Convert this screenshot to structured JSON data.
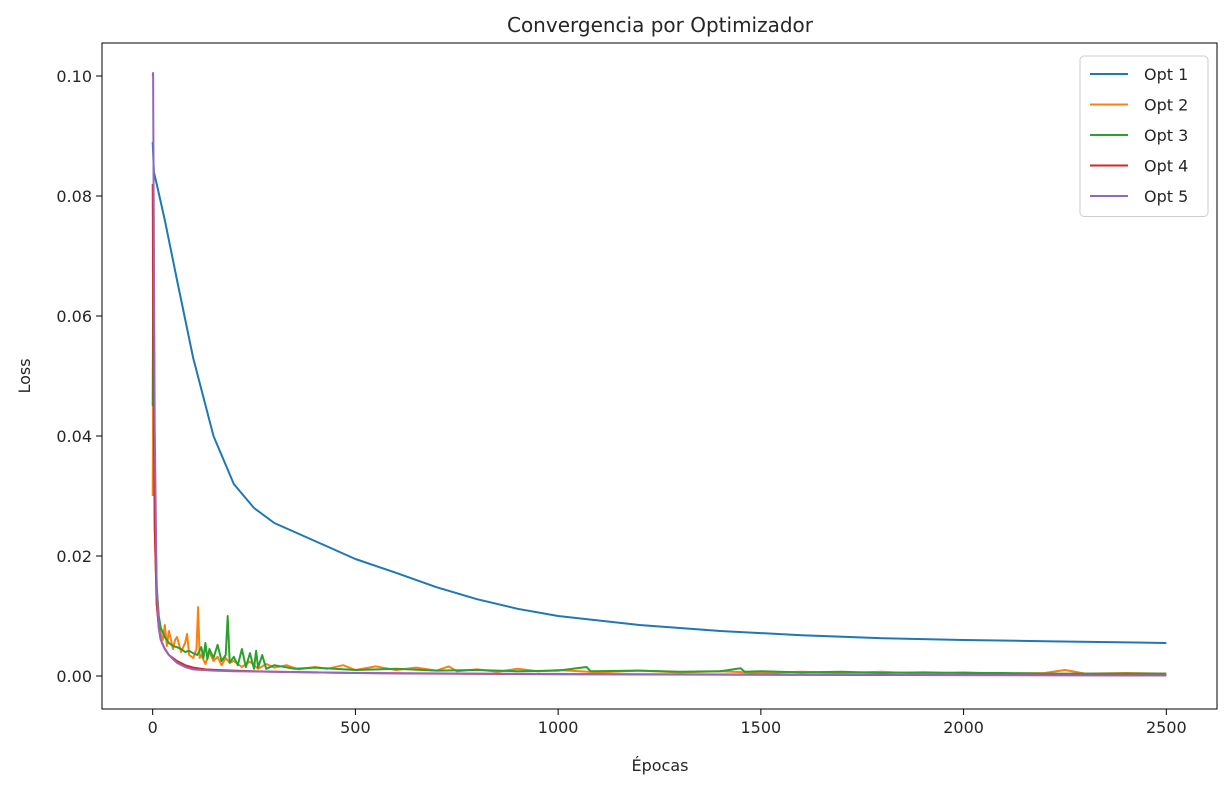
{
  "chart_data": {
    "type": "line",
    "title": "Convergencia por Optimizador",
    "xlabel": "Épocas",
    "ylabel": "Loss",
    "xlim": [
      -125,
      2625
    ],
    "ylim": [
      -0.0055,
      0.1055
    ],
    "xticks": [
      0,
      500,
      1000,
      1500,
      2000,
      2500
    ],
    "xtick_labels": [
      "0",
      "500",
      "1000",
      "1500",
      "2000",
      "2500"
    ],
    "yticks": [
      0.0,
      0.02,
      0.04,
      0.06,
      0.08,
      0.1
    ],
    "ytick_labels": [
      "0.00",
      "0.02",
      "0.04",
      "0.06",
      "0.08",
      "0.10"
    ],
    "grid": false,
    "legend_position": "top-right",
    "series": [
      {
        "name": "Opt 1",
        "color": "#1f77b4",
        "x": [
          0,
          3,
          10,
          30,
          60,
          100,
          150,
          200,
          250,
          300,
          400,
          500,
          600,
          700,
          800,
          900,
          1000,
          1200,
          1400,
          1600,
          1800,
          2000,
          2200,
          2400,
          2500
        ],
        "y": [
          0.089,
          0.084,
          0.082,
          0.076,
          0.066,
          0.053,
          0.04,
          0.032,
          0.028,
          0.0255,
          0.0225,
          0.0195,
          0.0172,
          0.0148,
          0.0128,
          0.0112,
          0.01,
          0.0085,
          0.0075,
          0.0068,
          0.0063,
          0.006,
          0.0058,
          0.0056,
          0.0055
        ]
      },
      {
        "name": "Opt 2",
        "color": "#ff7f0e",
        "x": [
          0,
          2,
          5,
          10,
          15,
          20,
          25,
          30,
          35,
          40,
          50,
          55,
          60,
          70,
          80,
          85,
          90,
          100,
          108,
          112,
          116,
          120,
          130,
          140,
          150,
          160,
          170,
          180,
          190,
          200,
          220,
          240,
          260,
          280,
          300,
          330,
          360,
          400,
          430,
          470,
          500,
          550,
          600,
          650,
          700,
          730,
          750,
          800,
          850,
          900,
          950,
          1000,
          1100,
          1200,
          1300,
          1400,
          1500,
          1600,
          1700,
          1800,
          1900,
          2000,
          2100,
          2200,
          2250,
          2300,
          2400,
          2500
        ],
        "y": [
          0.03,
          0.06,
          0.025,
          0.012,
          0.0085,
          0.007,
          0.006,
          0.0085,
          0.005,
          0.0075,
          0.0045,
          0.006,
          0.0065,
          0.004,
          0.0055,
          0.007,
          0.0035,
          0.003,
          0.0045,
          0.0115,
          0.003,
          0.0035,
          0.002,
          0.004,
          0.0025,
          0.0032,
          0.0018,
          0.003,
          0.0022,
          0.0025,
          0.0015,
          0.0024,
          0.0012,
          0.002,
          0.0014,
          0.0018,
          0.0011,
          0.0015,
          0.0012,
          0.0018,
          0.001,
          0.0016,
          0.001,
          0.0014,
          0.0009,
          0.0016,
          0.0008,
          0.0011,
          0.0007,
          0.0012,
          0.0008,
          0.001,
          0.0006,
          0.0009,
          0.0006,
          0.0008,
          0.0005,
          0.0007,
          0.0005,
          0.0007,
          0.0004,
          0.0006,
          0.0004,
          0.0005,
          0.001,
          0.0004,
          0.0005,
          0.0004
        ]
      },
      {
        "name": "Opt 3",
        "color": "#2ca02c",
        "x": [
          0,
          2,
          5,
          10,
          15,
          20,
          30,
          40,
          50,
          60,
          70,
          80,
          90,
          100,
          110,
          120,
          125,
          130,
          135,
          140,
          150,
          160,
          170,
          180,
          185,
          190,
          200,
          210,
          220,
          230,
          240,
          250,
          255,
          260,
          270,
          280,
          300,
          350,
          400,
          500,
          600,
          700,
          800,
          900,
          1000,
          1070,
          1080,
          1200,
          1300,
          1400,
          1450,
          1460,
          1500,
          1600,
          1700,
          1800,
          1900,
          2000,
          2100,
          2200,
          2300,
          2400,
          2500
        ],
        "y": [
          0.045,
          0.08,
          0.03,
          0.015,
          0.01,
          0.008,
          0.0065,
          0.0055,
          0.005,
          0.0048,
          0.0045,
          0.004,
          0.0042,
          0.0038,
          0.0035,
          0.0048,
          0.003,
          0.0055,
          0.0028,
          0.0045,
          0.003,
          0.0052,
          0.0025,
          0.0035,
          0.01,
          0.0022,
          0.0032,
          0.0018,
          0.0045,
          0.0015,
          0.0038,
          0.0012,
          0.0042,
          0.0014,
          0.0035,
          0.0012,
          0.0018,
          0.0012,
          0.0014,
          0.001,
          0.0012,
          0.0009,
          0.001,
          0.0008,
          0.0009,
          0.0015,
          0.0008,
          0.0009,
          0.0007,
          0.0008,
          0.0013,
          0.0007,
          0.0008,
          0.0006,
          0.0007,
          0.0005,
          0.0006,
          0.0005,
          0.0005,
          0.0004,
          0.0004,
          0.0004,
          0.0004
        ]
      },
      {
        "name": "Opt 4",
        "color": "#d62728",
        "x": [
          0,
          2,
          5,
          10,
          15,
          20,
          30,
          40,
          60,
          80,
          100,
          130,
          160,
          200,
          250,
          300,
          400,
          500,
          700,
          1000,
          1500,
          2000,
          2500
        ],
        "y": [
          0.082,
          0.05,
          0.025,
          0.012,
          0.008,
          0.006,
          0.0045,
          0.0035,
          0.0025,
          0.0018,
          0.0014,
          0.0011,
          0.001,
          0.0009,
          0.0008,
          0.0007,
          0.0006,
          0.0005,
          0.0004,
          0.0003,
          0.0002,
          0.00015,
          0.0001
        ]
      },
      {
        "name": "Opt 5",
        "color": "#9467bd",
        "x": [
          0,
          1,
          3,
          5,
          8,
          10,
          15,
          20,
          30,
          40,
          50,
          60,
          80,
          100,
          120,
          150,
          200,
          300,
          500,
          800,
          1200,
          1800,
          2500
        ],
        "y": [
          0.1,
          0.1005,
          0.07,
          0.042,
          0.025,
          0.015,
          0.008,
          0.006,
          0.0045,
          0.0035,
          0.0028,
          0.0022,
          0.0015,
          0.0011,
          0.001,
          0.0009,
          0.0008,
          0.0007,
          0.0005,
          0.0004,
          0.0003,
          0.0002,
          0.0001
        ]
      }
    ]
  }
}
